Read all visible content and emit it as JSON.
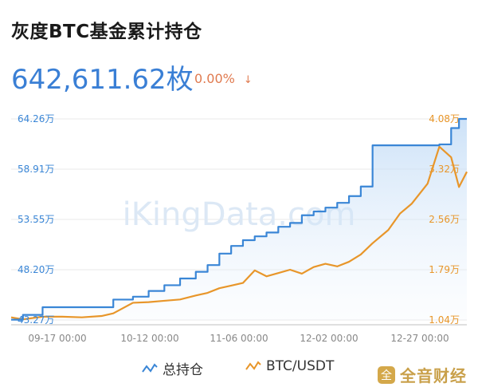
{
  "header": {
    "title": "灰度BTC基金累计持仓",
    "value": "642,611.62枚",
    "change": "0.00%",
    "change_arrow": "↓"
  },
  "watermark": "iKingData.com",
  "brand": {
    "icon": "全",
    "text": "全音财经"
  },
  "legend": [
    "总持仓",
    "BTC/USDT"
  ],
  "colors": {
    "holdings": "#3a86d6",
    "price": "#e8962a",
    "value": "#3a7fd5",
    "change": "#e07a4f"
  },
  "chart_data": {
    "type": "line",
    "x_ticks": [
      "09-17 00:00",
      "10-12 00:00",
      "11-06 00:00",
      "12-02 00:00",
      "12-27 00:00"
    ],
    "left_axis": {
      "ticks": [
        "43.27万",
        "48.20万",
        "53.55万",
        "58.91万",
        "64.26万"
      ],
      "ylim": [
        43.27,
        64.26
      ]
    },
    "right_axis": {
      "ticks": [
        "1.04万",
        "1.79万",
        "2.56万",
        "3.32万",
        "4.08万"
      ],
      "ylim": [
        1.04,
        4.08
      ]
    },
    "series": [
      {
        "name": "总持仓",
        "axis": "left",
        "x": [
          "09-09",
          "09-12",
          "09-17",
          "09-22",
          "09-27",
          "10-02",
          "10-05",
          "10-10",
          "10-14",
          "10-18",
          "10-22",
          "10-26",
          "10-29",
          "11-01",
          "11-04",
          "11-07",
          "11-10",
          "11-13",
          "11-16",
          "11-19",
          "11-22",
          "11-25",
          "11-28",
          "12-01",
          "12-04",
          "12-07",
          "12-10",
          "12-14",
          "12-17",
          "12-20",
          "12-24",
          "12-27",
          "12-30",
          "01-01",
          "01-03"
        ],
        "values": [
          43.3,
          43.8,
          44.6,
          44.6,
          44.6,
          44.6,
          45.4,
          45.7,
          46.3,
          46.9,
          47.6,
          48.3,
          49.0,
          50.2,
          51.0,
          51.6,
          52.0,
          52.4,
          53.0,
          53.4,
          54.2,
          54.6,
          55.0,
          55.5,
          56.2,
          57.2,
          61.5,
          61.5,
          61.5,
          61.5,
          61.5,
          61.6,
          63.3,
          64.26,
          64.26
        ]
      },
      {
        "name": "BTC/USDT",
        "axis": "right",
        "x": [
          "09-09",
          "09-12",
          "09-17",
          "09-22",
          "09-27",
          "10-02",
          "10-05",
          "10-10",
          "10-14",
          "10-18",
          "10-22",
          "10-26",
          "10-29",
          "11-01",
          "11-04",
          "11-07",
          "11-10",
          "11-13",
          "11-16",
          "11-19",
          "11-22",
          "11-25",
          "11-28",
          "12-01",
          "12-04",
          "12-07",
          "12-10",
          "12-14",
          "12-17",
          "12-20",
          "12-24",
          "12-27",
          "12-30",
          "01-01",
          "01-03"
        ],
        "values": [
          1.08,
          1.05,
          1.09,
          1.09,
          1.08,
          1.1,
          1.14,
          1.3,
          1.31,
          1.33,
          1.35,
          1.41,
          1.45,
          1.52,
          1.56,
          1.6,
          1.79,
          1.7,
          1.75,
          1.8,
          1.74,
          1.84,
          1.89,
          1.85,
          1.92,
          2.03,
          2.2,
          2.4,
          2.65,
          2.8,
          3.1,
          3.66,
          3.5,
          3.05,
          3.28
        ]
      }
    ]
  }
}
